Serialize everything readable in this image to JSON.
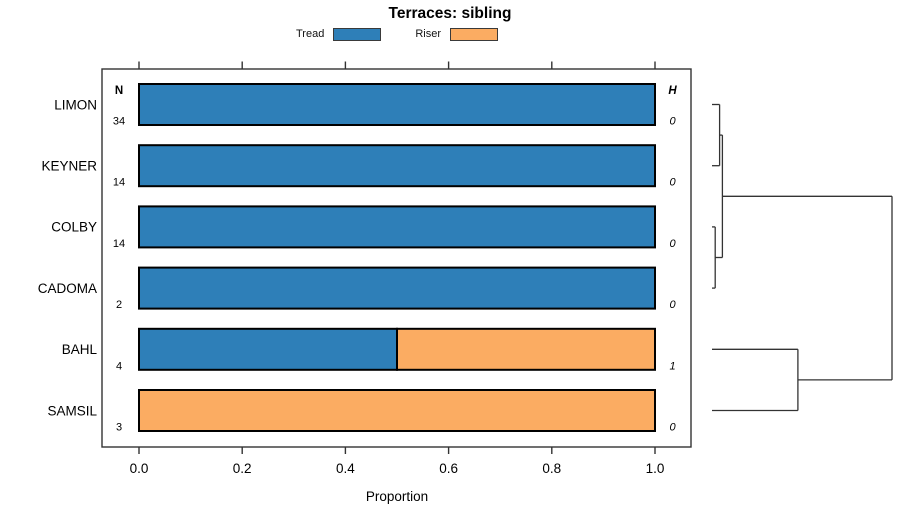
{
  "title": "Terraces: sibling",
  "legend": {
    "items": [
      {
        "label": "Tread",
        "color": "#2E7FB8"
      },
      {
        "label": "Riser",
        "color": "#FBAC62"
      }
    ]
  },
  "columns": {
    "n_header": "N",
    "h_header": "H"
  },
  "axis": {
    "xlabel": "Proportion",
    "ticks": [
      "0.0",
      "0.2",
      "0.4",
      "0.6",
      "0.8",
      "1.0"
    ]
  },
  "chart_data": {
    "type": "bar",
    "orientation": "horizontal-stacked",
    "title": "Terraces: sibling",
    "categories": [
      "LIMON",
      "KEYNER",
      "COLBY",
      "CADOMA",
      "BAHL",
      "SAMSIL"
    ],
    "series": [
      {
        "name": "Tread",
        "color": "#2E7FB8",
        "values": [
          1,
          1,
          1,
          1,
          0.5,
          0
        ]
      },
      {
        "name": "Riser",
        "color": "#FBAC62",
        "values": [
          0,
          0,
          0,
          0,
          0.5,
          1
        ]
      }
    ],
    "n_column": {
      "header": "N",
      "values": [
        34,
        14,
        14,
        2,
        4,
        3
      ]
    },
    "h_column": {
      "header": "H",
      "values": [
        0,
        0,
        0,
        0,
        1,
        0
      ]
    },
    "xlabel": "Proportion",
    "xlim": [
      0,
      1
    ],
    "xticks": [
      0,
      0.2,
      0.4,
      0.6,
      0.8,
      1.0
    ],
    "grid": false,
    "legend_position": "top",
    "dendrogram": {
      "leaf_order": [
        "LIMON",
        "KEYNER",
        "COLBY",
        "CADOMA",
        "BAHL",
        "SAMSIL"
      ],
      "root": {
        "height": 1.0,
        "children": [
          {
            "height": 0.058,
            "children": [
              {
                "height": 0.042,
                "children": [
                  {
                    "leaf": "LIMON"
                  },
                  {
                    "leaf": "KEYNER"
                  }
                ]
              },
              {
                "height": 0.018,
                "children": [
                  {
                    "leaf": "COLBY"
                  },
                  {
                    "leaf": "CADOMA"
                  }
                ]
              }
            ]
          },
          {
            "height": 0.477,
            "children": [
              {
                "leaf": "BAHL"
              },
              {
                "leaf": "SAMSIL"
              }
            ]
          }
        ]
      }
    }
  }
}
